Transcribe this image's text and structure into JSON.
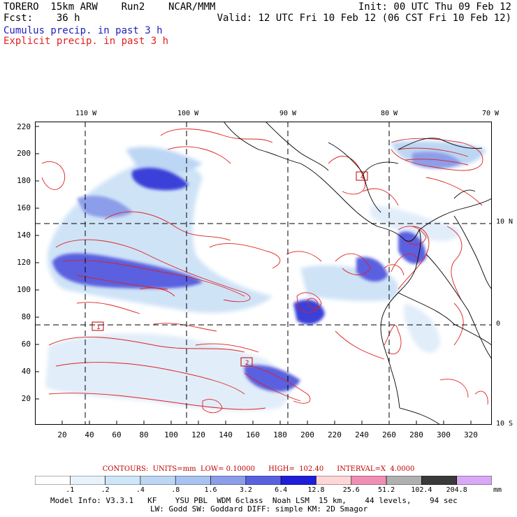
{
  "header": {
    "model_line": "TORERO  15km ARW    Run2    NCAR/MMM",
    "forecast_line": "Fcst:    36 h",
    "init_line": "Init: 00 UTC Thu 09 Feb 12",
    "valid_line": "Valid: 12 UTC Fri 10 Feb 12 (06 CST Fri 10 Feb 12)",
    "cumulus_title": "Cumulus precip. in past 3 h",
    "explicit_title": "Explicit precip. in past 3 h"
  },
  "colors": {
    "cumulus": "#2020c0",
    "explicit": "#e02020",
    "map_lines": "#000000",
    "grid": "#000000"
  },
  "map": {
    "longitude_labels": [
      "110 W",
      "100 W",
      "90 W",
      "80 W",
      "70 W"
    ],
    "latitude_labels": [
      "10 N",
      "0",
      "10 S"
    ],
    "y_axis_ticks": [
      "220",
      "200",
      "180",
      "160",
      "140",
      "120",
      "100",
      "80",
      "60",
      "40",
      "20"
    ],
    "x_axis_ticks": [
      "20",
      "40",
      "60",
      "80",
      "100",
      "120",
      "140",
      "160",
      "180",
      "200",
      "220",
      "240",
      "260",
      "280",
      "300",
      "320"
    ],
    "station_labels": [
      "4",
      "1",
      "2"
    ]
  },
  "legend": {
    "contours_text": "CONTOURS:  UNITS=mm  LOW= 0.10000      HIGH=  102.40      INTERVAL=X  4.0000",
    "bin_labels": [
      ".1",
      ".2",
      ".4",
      ".8",
      "1.6",
      "3.2",
      "6.4",
      "12.8",
      "25.6",
      "51.2",
      "102.4",
      "204.8"
    ],
    "bin_colors": [
      "#ffffff",
      "#e8f2fb",
      "#cfe6f8",
      "#bcd6f4",
      "#a9c3f0",
      "#8c9de9",
      "#5a61df",
      "#1e1ed8",
      "#ffd6d6",
      "#ef8fb4",
      "#b0b0b0",
      "#3a3a3a",
      "#d9a8f5"
    ],
    "unit": "mm"
  },
  "footer": {
    "line1": "Model Info: V3.3.1   KF    YSU PBL  WDM 6class  Noah LSM  15 km,    44 levels,    94 sec",
    "line2": "LW: Godd SW: Goddard DIFF: simple KM: 2D Smagor"
  }
}
